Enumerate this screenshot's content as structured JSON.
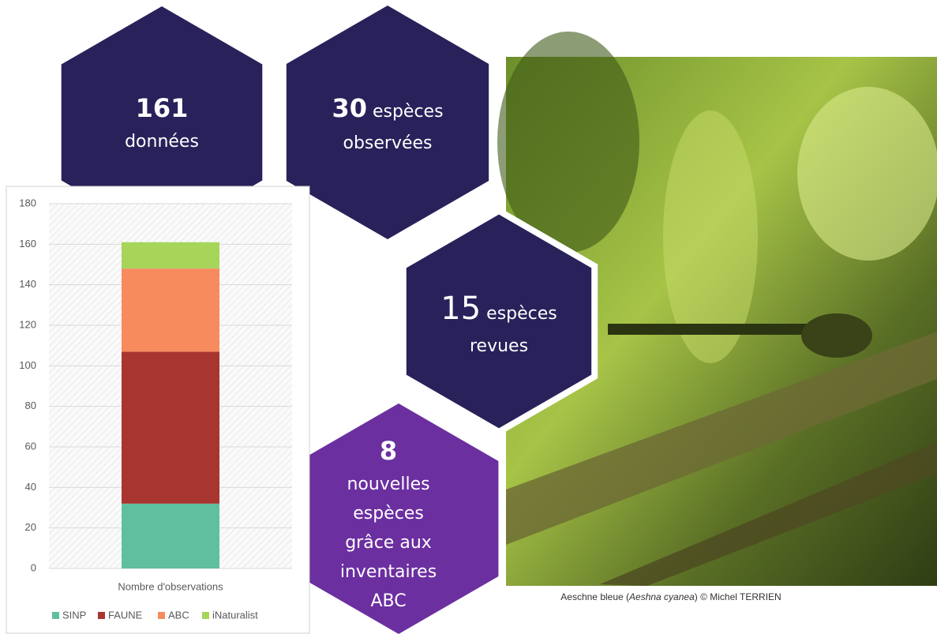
{
  "chart_data": {
    "type": "stacked-bar",
    "categories": [
      "Nombre d'observations"
    ],
    "series": [
      {
        "name": "SINP",
        "color": "#5fbf9f",
        "values": [
          32
        ]
      },
      {
        "name": "FAUNE",
        "color": "#a93530",
        "values": [
          75
        ]
      },
      {
        "name": "ABC",
        "color": "#f88b5e",
        "values": [
          41
        ]
      },
      {
        "name": "iNaturalist",
        "color": "#a6d55a",
        "values": [
          13
        ]
      }
    ],
    "ylim": [
      0,
      180
    ],
    "yticks": [
      0,
      20,
      40,
      60,
      80,
      100,
      120,
      140,
      160,
      180
    ],
    "grid": true,
    "legend": "bottom"
  },
  "hexagons": [
    {
      "number": "161",
      "lines": [
        "données"
      ]
    },
    {
      "number": "30",
      "lines": [
        "espèces",
        "observées"
      ]
    },
    {
      "number": "15",
      "lines": [
        "espèces",
        "revues"
      ]
    },
    {
      "number": "8",
      "lines": [
        "nouvelles",
        "espèces",
        "grâce aux",
        "inventaires",
        "ABC"
      ]
    }
  ],
  "caption": {
    "before": "Aeschne bleue (",
    "italic": "Aeshna cyanea",
    "after": ") © Michel TERRIEN"
  }
}
